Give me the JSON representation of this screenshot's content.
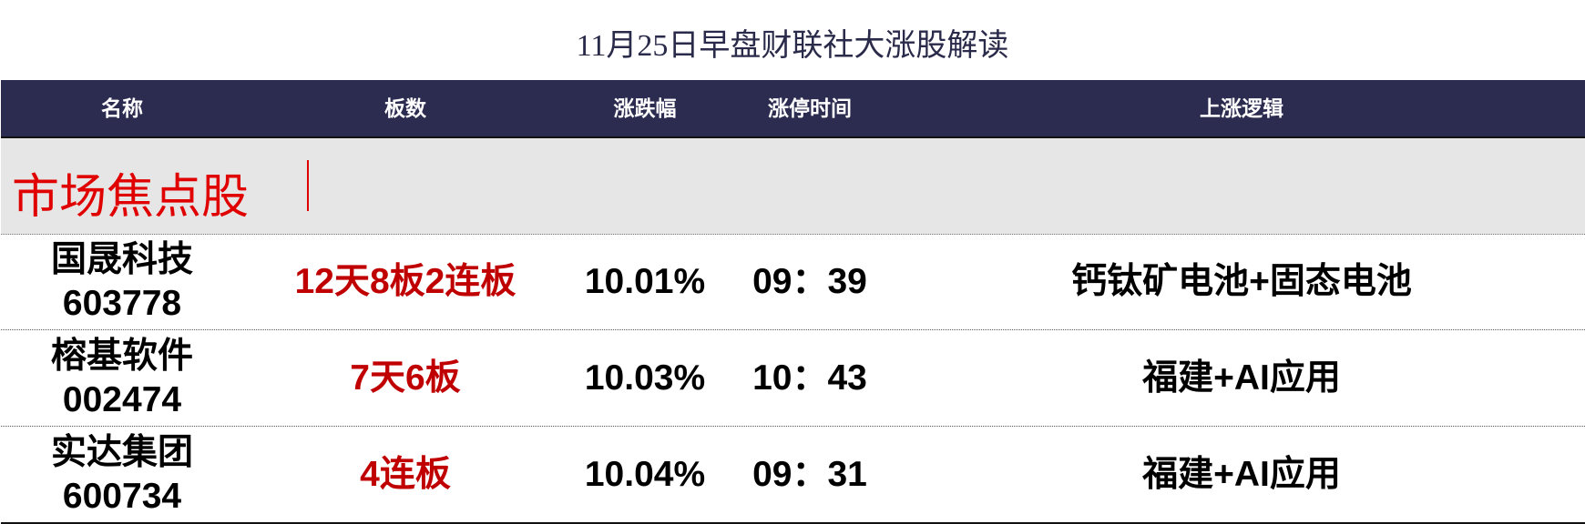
{
  "title": "11月25日早盘财联社大涨股解读",
  "columns": [
    "名称",
    "板数",
    "涨跌幅",
    "涨停时间",
    "上涨逻辑"
  ],
  "section": {
    "label": "市场焦点股"
  },
  "rows": [
    {
      "name": "国晟科技",
      "code": "603778",
      "boards": "12天8板2连板",
      "change": "10.01%",
      "time": "09：39",
      "logic": "钙钛矿电池+固态电池"
    },
    {
      "name": "榕基软件",
      "code": "002474",
      "boards": "7天6板",
      "change": "10.03%",
      "time": "10：43",
      "logic": "福建+AI应用"
    },
    {
      "name": "实达集团",
      "code": "600734",
      "boards": "4连板",
      "change": "10.04%",
      "time": "09：31",
      "logic": "福建+AI应用"
    }
  ],
  "colors": {
    "header_bg": "#2c2b50",
    "section_bg": "#e6e6e6",
    "section_text": "#e00000",
    "boards_text": "#c00000"
  }
}
